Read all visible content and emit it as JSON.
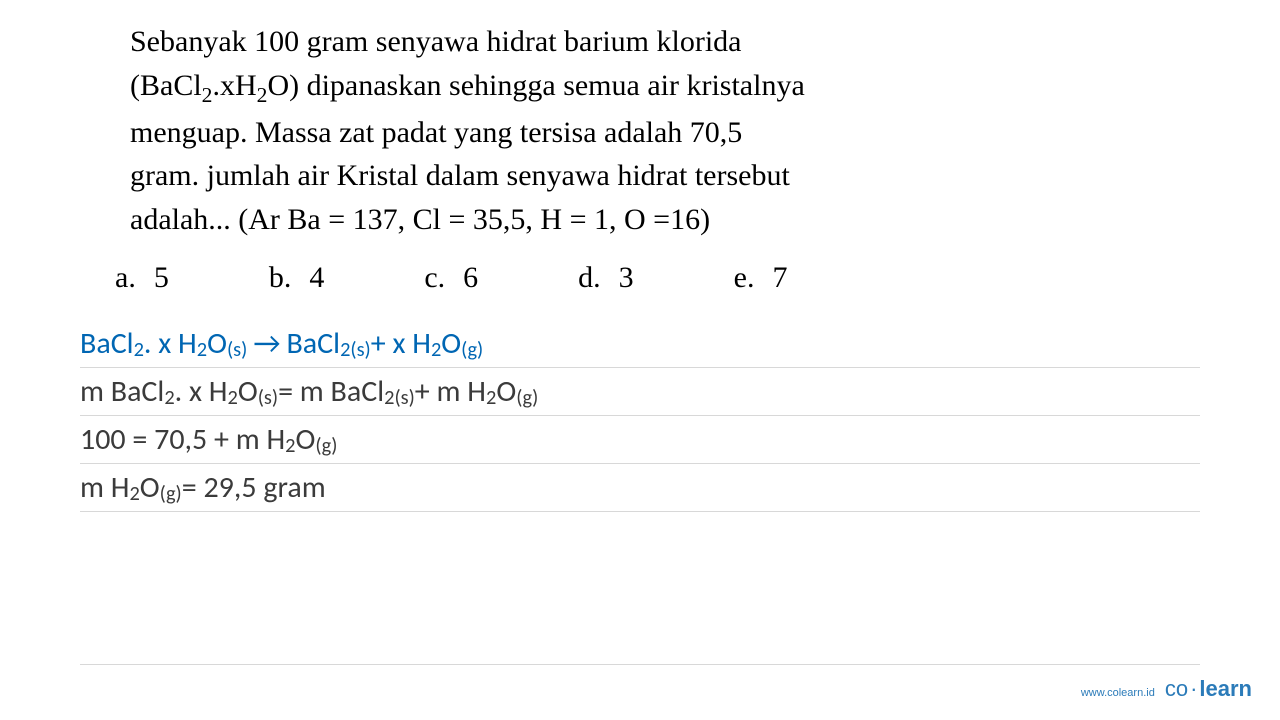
{
  "question": {
    "line1": "Sebanyak 100 gram senyawa hidrat barium klorida",
    "formula_pre": "(BaCl",
    "formula_sub1": "2",
    "formula_mid": ".xH",
    "formula_sub2": "2",
    "formula_post": "O) dipanaskan sehingga semua air kristalnya",
    "line3": "menguap. Massa zat padat yang tersisa adalah 70,5",
    "line4": "gram. jumlah air Kristal dalam senyawa hidrat tersebut",
    "line5": "adalah... (Ar Ba = 137, Cl = 35,5, H = 1, O =16)"
  },
  "options": {
    "a": {
      "letter": "a.",
      "value": "5"
    },
    "b": {
      "letter": "b.",
      "value": "4"
    },
    "c": {
      "letter": "c.",
      "value": "6"
    },
    "d": {
      "letter": "d.",
      "value": "3"
    },
    "e": {
      "letter": "e.",
      "value": "7"
    }
  },
  "work": {
    "l1_p1": "BaCl",
    "l1_s1": "2",
    "l1_p2": ". x H",
    "l1_s2": "2",
    "l1_p3": "O",
    "l1_s3": "(s)",
    "l1_arrow": "→",
    "l1_p4": " BaCl",
    "l1_s4": "2(s)",
    "l1_p5": " + x H",
    "l1_s5": "2",
    "l1_p6": "O",
    "l1_s6": "(g)",
    "l2_p1": "m BaCl",
    "l2_s1": "2",
    "l2_p2": ". x H",
    "l2_s2": "2",
    "l2_p3": "O",
    "l2_s3": "(s)",
    "l2_p4": " = m BaCl",
    "l2_s4": "2(s)",
    "l2_p5": " + m H",
    "l2_s5": "2",
    "l2_p6": "O",
    "l2_s6": "(g)",
    "l3_p1": "100 = 70,5 + m H",
    "l3_s1": "2",
    "l3_p2": "O",
    "l3_s2": "(g)",
    "l4_p1": "m H",
    "l4_s1": "2",
    "l4_p2": "O",
    "l4_s2": "(g)",
    "l4_p3": " = 29,5 gram"
  },
  "footer": {
    "url": "www.colearn.id",
    "logo_co": "co",
    "logo_dot": "·",
    "logo_learn": "learn"
  },
  "colors": {
    "text": "#000000",
    "work_default": "#3b3b3b",
    "work_blue": "#0066b3",
    "rule": "#d8d8d8",
    "brand": "#2b7bb9",
    "bg": "#ffffff"
  }
}
